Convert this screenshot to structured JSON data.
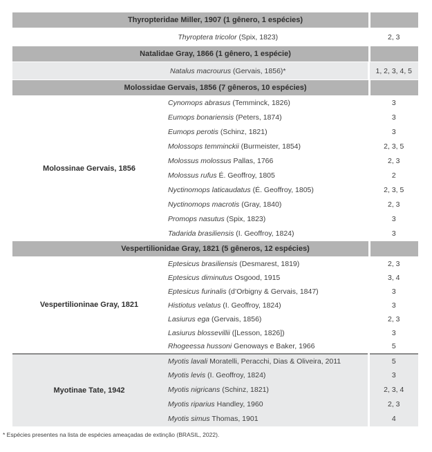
{
  "colors": {
    "family_header_bg": "#b3b3b3",
    "shaded_row_bg": "#e8e9ea",
    "section_divider": "#8a8a8a",
    "text": "#3d3d3d"
  },
  "footnote": "* Espécies presentes na lista de espécies ameaçadas de extinção (BRASIL, 2022).",
  "table": {
    "rows": [
      {
        "kind": "family",
        "label": "Thyropteridae Miller, 1907 (1 gênero, 1 espécies)"
      },
      {
        "kind": "species",
        "span": true,
        "section": "single",
        "name": "Thyroptera tricolor",
        "auth": " (Spix, 1823)",
        "nums": "2, 3"
      },
      {
        "kind": "family",
        "label": "Natalidae Gray, 1866 (1 gênero, 1 espécie)"
      },
      {
        "kind": "species",
        "span": true,
        "section": "single",
        "shaded": true,
        "name": "Natalus macrourus",
        "auth": " (Gervais, 1856)*",
        "nums": "1, 2, 3, 4, 5"
      },
      {
        "kind": "family",
        "label": "Molossidae Gervais, 1856 (7 gêneros, 10 espécies)"
      },
      {
        "kind": "species",
        "section": "mol",
        "subfamily": "Molossinae Gervais, 1856",
        "rowspan": 10,
        "name": "Cynomops abrasus",
        "auth": " (Temminck, 1826)",
        "nums": "3"
      },
      {
        "kind": "species",
        "section": "mol",
        "name": "Eumops bonariensis",
        "auth": " (Peters, 1874)",
        "nums": "3"
      },
      {
        "kind": "species",
        "section": "mol",
        "name": "Eumops perotis",
        "auth": " (Schinz, 1821)",
        "nums": "3"
      },
      {
        "kind": "species",
        "section": "mol",
        "name": "Molossops temminckii",
        "auth": " (Burmeister, 1854)",
        "nums": "2, 3, 5"
      },
      {
        "kind": "species",
        "section": "mol",
        "name": "Molossus molossus",
        "auth": " Pallas, 1766",
        "nums": "2, 3"
      },
      {
        "kind": "species",
        "section": "mol",
        "name": "Molossus rufus",
        "auth": " É. Geoffroy, 1805",
        "nums": "2"
      },
      {
        "kind": "species",
        "section": "mol",
        "name": "Nyctinomops laticaudatus",
        "auth": " (É. Geoffroy, 1805)",
        "nums": "2, 3, 5"
      },
      {
        "kind": "species",
        "section": "mol",
        "name": "Nyctinomops macrotis",
        "auth": " (Gray, 1840)",
        "nums": "2, 3"
      },
      {
        "kind": "species",
        "section": "mol",
        "name": "Promops nasutus",
        "auth": " (Spix, 1823)",
        "nums": "3"
      },
      {
        "kind": "species",
        "section": "mol",
        "name": "Tadarida brasiliensis",
        "auth": " (I. Geoffroy, 1824)",
        "nums": "3"
      },
      {
        "kind": "family",
        "label": "Vespertilionidae Gray, 1821 (5 gêneros, 12 espécies)"
      },
      {
        "kind": "species",
        "section": "vesp",
        "subfamily": "Vespertilioninae Gray, 1821",
        "rowspan": 7,
        "name": "Eptesicus brasiliensis",
        "auth": " (Desmarest, 1819)",
        "nums": "2, 3"
      },
      {
        "kind": "species",
        "section": "vesp",
        "name": "Eptesicus diminutus",
        "auth": " Osgood, 1915",
        "nums": "3, 4"
      },
      {
        "kind": "species",
        "section": "vesp",
        "name": "Eptesicus furinalis",
        "auth": " (d’Orbigny & Gervais, 1847)",
        "nums": "3"
      },
      {
        "kind": "species",
        "section": "vesp",
        "name": "Histiotus velatus",
        "auth": " (I. Geoffroy, 1824)",
        "nums": "3"
      },
      {
        "kind": "species",
        "section": "vesp",
        "name": "Lasiurus ega",
        "auth": " (Gervais, 1856)",
        "nums": "2, 3"
      },
      {
        "kind": "species",
        "section": "vesp",
        "name": "Lasiurus blossevillii",
        "auth": " ([Lesson, 1826])",
        "nums": "3"
      },
      {
        "kind": "species",
        "section": "vesp",
        "name": "Rhogeessa hussoni",
        "auth": " Genoways e Baker, 1966",
        "nums": "5"
      },
      {
        "kind": "species",
        "section": "myo",
        "shaded": true,
        "divider": true,
        "subfamily": "Myotinae Tate, 1942",
        "rowspan": 5,
        "name": "Myotis lavali",
        "auth": " Moratelli, Peracchi, Dias & Oliveira, 2011",
        "nums": "5"
      },
      {
        "kind": "species",
        "section": "myo",
        "shaded": true,
        "name": "Myotis levis",
        "auth": " (I. Geoffroy, 1824)",
        "nums": "3"
      },
      {
        "kind": "species",
        "section": "myo",
        "shaded": true,
        "name": "Myotis nigricans",
        "auth": " (Schinz, 1821)",
        "nums": "2, 3, 4"
      },
      {
        "kind": "species",
        "section": "myo",
        "shaded": true,
        "name": "Myotis riparius",
        "auth": " Handley, 1960",
        "nums": "2, 3"
      },
      {
        "kind": "species",
        "section": "myo",
        "shaded": true,
        "name": "Myotis simus",
        "auth": " Thomas, 1901",
        "nums": "4"
      }
    ]
  }
}
